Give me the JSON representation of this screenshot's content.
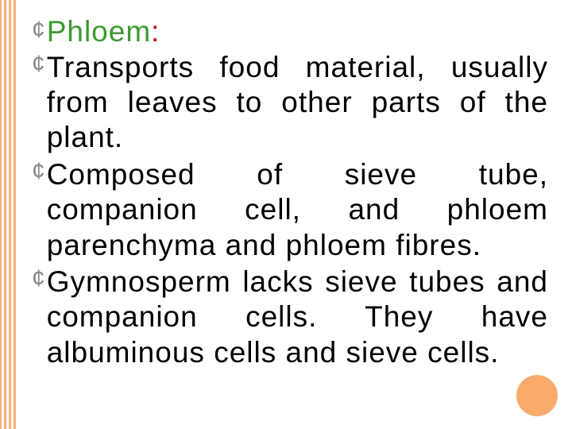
{
  "stripes": {
    "colors": [
      "#f8b07a",
      "#ffffff",
      "#f8b07a",
      "#ffffff",
      "#f8b07a",
      "#ffffff",
      "#f8b07a"
    ],
    "widths": [
      2,
      3,
      3,
      3,
      3,
      3,
      3
    ]
  },
  "bullet_glyph": "¢",
  "title": {
    "word": "Phloem",
    "colon": ":",
    "word_color": "#3b9a2f",
    "colon_color": "#c00000"
  },
  "items": [
    "Transports food material, usually from leaves to other parts of the plant.",
    "Composed of sieve tube, companion cell, and phloem parenchyma and phloem fibres.",
    "Gymnosperm lacks sieve tubes and companion cells. They have albuminous cells and sieve cells."
  ],
  "circle_color": "#f8ab6d",
  "background_color": "#ffffff",
  "text_color": "#000000",
  "bullet_color": "#8a8a8a",
  "font_size_pt": 28,
  "font_family": "Comic Sans MS"
}
